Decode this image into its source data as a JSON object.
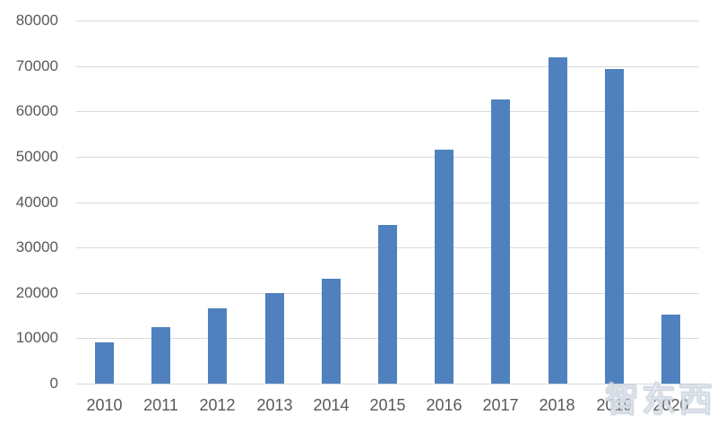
{
  "chart_data": {
    "type": "bar",
    "title": "",
    "xlabel": "",
    "ylabel": "",
    "categories": [
      "2010",
      "2011",
      "2012",
      "2013",
      "2014",
      "2015",
      "2016",
      "2017",
      "2018",
      "2019",
      "2020"
    ],
    "values": [
      9000,
      12500,
      16500,
      20000,
      23200,
      35000,
      51600,
      62600,
      71900,
      69300,
      15300
    ],
    "ylim": [
      0,
      80000
    ],
    "ytick_step": 10000,
    "ytick_labels": [
      "0",
      "10000",
      "20000",
      "30000",
      "40000",
      "50000",
      "60000",
      "70000",
      "80000"
    ],
    "grid": "horizontal",
    "legend_position": "none",
    "colors": {
      "bar": "#4e81bd",
      "gridline": "#d9d9d9",
      "axis_label": "#595959",
      "background": "#ffffff"
    }
  },
  "watermark": {
    "text": "智东西"
  }
}
